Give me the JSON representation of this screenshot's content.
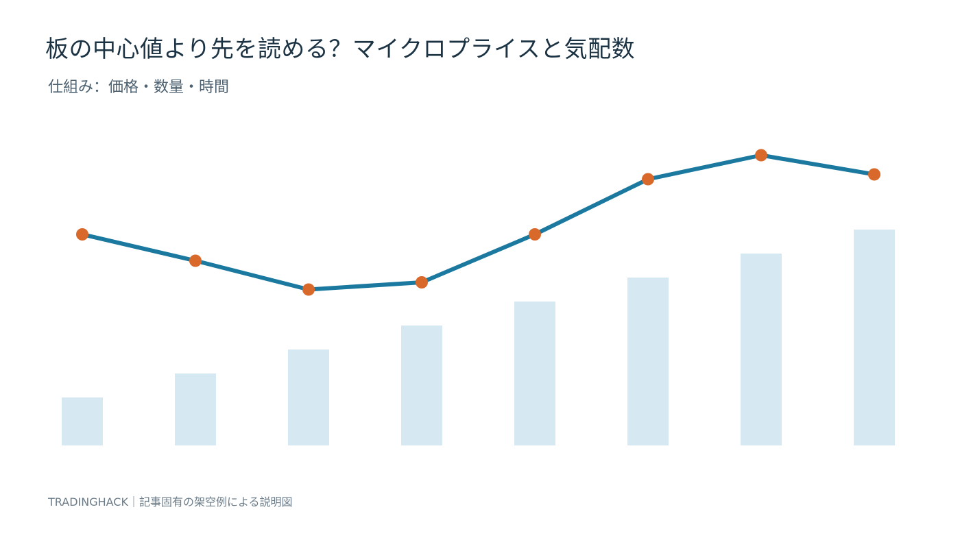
{
  "header": {
    "title": "板の中心値より先を読める？マイクロプライスと気配数",
    "subtitle": "仕組み：価格・数量・時間"
  },
  "footer": {
    "text": "TRADINGHACK｜記事固有の架空例による説明図"
  },
  "colors": {
    "bar": "#d6e8f1",
    "line": "#1b79a0",
    "marker": "#d9692a",
    "title": "#1c3344",
    "subtitle": "#4d6170",
    "footer": "#6b7c88"
  },
  "chart_data": {
    "type": "bar",
    "x": [
      1,
      2,
      3,
      4,
      5,
      6,
      7,
      8
    ],
    "series": [
      {
        "type": "bar",
        "values": [
          2,
          3,
          4,
          5,
          6,
          7,
          8,
          9
        ]
      },
      {
        "type": "line",
        "values": [
          8.8,
          7.7,
          6.5,
          6.8,
          8.8,
          11.1,
          12.1,
          11.3
        ]
      }
    ],
    "ylim": [
      0,
      14
    ],
    "grid": false,
    "legend": "none",
    "axes_visible": false
  }
}
